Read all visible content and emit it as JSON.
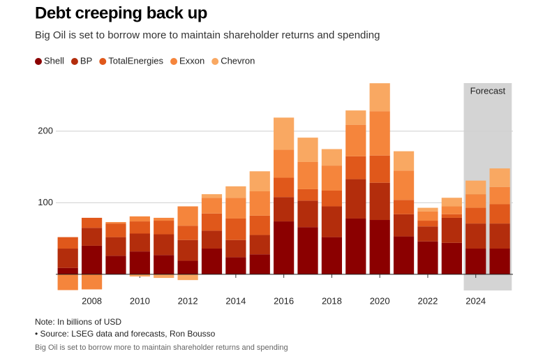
{
  "chart_data": {
    "type": "stacked_bar",
    "title": "Debt creeping back up",
    "subtitle": "Big Oil is set to borrow more to maintain shareholder returns and spending",
    "note": "Note: In billions of USD",
    "source": "• Source: LSEG data and forecasts, Ron Bousso",
    "caption": "Big Oil is set to borrow more to maintain shareholder returns and spending",
    "x": [
      2007,
      2008,
      2009,
      2010,
      2011,
      2012,
      2013,
      2014,
      2015,
      2016,
      2017,
      2018,
      2019,
      2020,
      2021,
      2022,
      2023,
      2024,
      2025
    ],
    "series": [
      {
        "name": "Shell",
        "color": "#8b0000",
        "values": [
          9,
          40,
          26,
          32,
          27,
          19,
          36,
          24,
          28,
          74,
          66,
          52,
          78,
          76,
          53,
          46,
          44,
          36,
          36
        ]
      },
      {
        "name": "BP",
        "color": "#b32d0c",
        "values": [
          27,
          25,
          26,
          25,
          29,
          29,
          25,
          24,
          27,
          34,
          37,
          43,
          55,
          52,
          31,
          21,
          35,
          35,
          35
        ]
      },
      {
        "name": "TotalEnergies",
        "color": "#e0581b",
        "values": [
          16,
          14,
          19,
          17,
          19,
          20,
          24,
          30,
          27,
          27,
          16,
          22,
          32,
          38,
          20,
          8,
          5,
          22,
          27
        ]
      },
      {
        "name": "Exxon",
        "color": "#f5853c",
        "values": [
          -22,
          -21,
          2,
          7,
          4,
          27,
          22,
          29,
          34,
          39,
          38,
          35,
          44,
          62,
          41,
          13,
          11,
          19,
          24
        ]
      },
      {
        "name": "Chevron",
        "color": "#f9a862",
        "values": [
          0,
          0,
          0,
          -3,
          -5,
          -8,
          5,
          16,
          28,
          45,
          34,
          23,
          20,
          39,
          27,
          5,
          12,
          19,
          26
        ]
      }
    ],
    "xlim": [
      2006.5,
      2025.55
    ],
    "xticks": [
      2008,
      2010,
      2012,
      2014,
      2016,
      2018,
      2020,
      2022,
      2024
    ],
    "ylim": [
      -22.5,
      275
    ],
    "yticks": [
      100,
      200
    ],
    "grid": true,
    "shaded_region": {
      "label": "Forecast",
      "x": [
        2023.5,
        2025.5
      ]
    }
  }
}
